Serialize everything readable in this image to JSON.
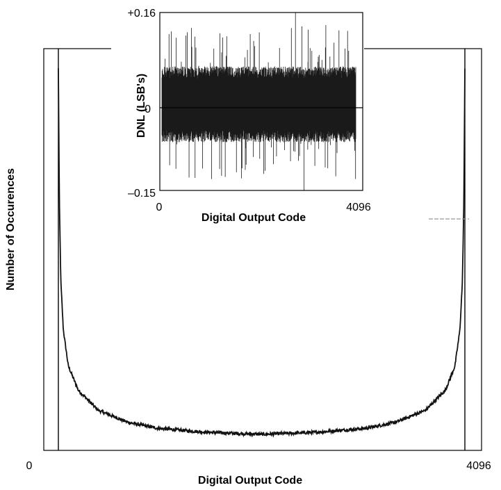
{
  "chart_data": [
    {
      "type": "line",
      "role": "main-histogram",
      "xlabel": "Digital Output Code",
      "ylabel": "Number of Occurences",
      "x_ticks": [
        "0",
        "4096"
      ],
      "xlim": [
        0,
        4096
      ],
      "shape": "U-shaped (arcsine) code histogram, low flat middle, sharp rises at both code edges",
      "series": [
        {
          "x": [
            0,
            10,
            25,
            50,
            100,
            200,
            400,
            700,
            1000,
            1500,
            2048,
            2600,
            3100,
            3400,
            3700,
            3900,
            3996,
            4046,
            4071,
            4086,
            4096
          ],
          "y": [
            0.95,
            0.62,
            0.42,
            0.3,
            0.21,
            0.15,
            0.1,
            0.07,
            0.055,
            0.045,
            0.04,
            0.045,
            0.055,
            0.07,
            0.1,
            0.15,
            0.21,
            0.3,
            0.42,
            0.62,
            0.95
          ]
        }
      ],
      "grid": false
    },
    {
      "type": "line",
      "role": "inset-dnl",
      "xlabel": "Digital Output Code",
      "ylabel": "DNL (LSB's)",
      "x_ticks": [
        "0",
        "4096"
      ],
      "y_ticks": [
        "+0.16",
        "0",
        "–0.15"
      ],
      "xlim": [
        0,
        4096
      ],
      "ylim": [
        -0.15,
        0.16
      ],
      "dnl_envelope_typical": [
        -0.06,
        0.06
      ],
      "dnl_peak_max": 0.16,
      "dnl_peak_min": -0.15,
      "grid": false
    }
  ]
}
